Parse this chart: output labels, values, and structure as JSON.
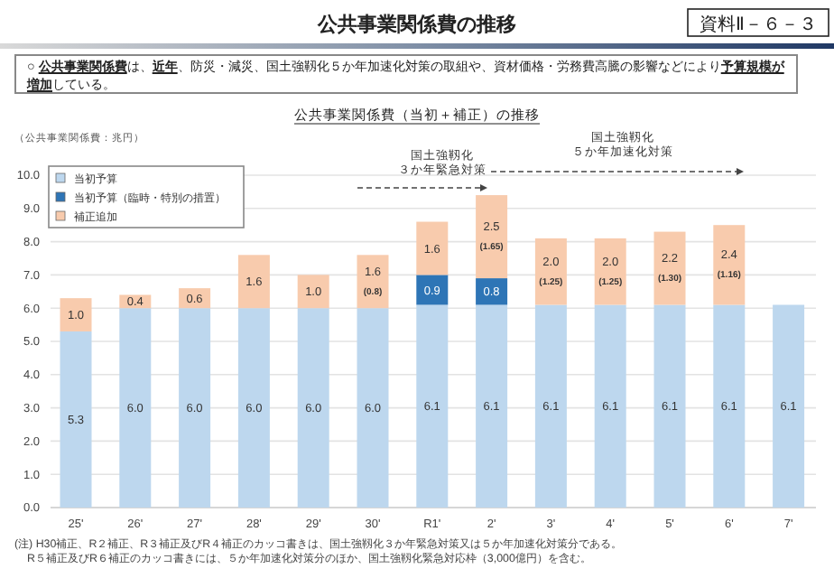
{
  "chart_data": {
    "type": "bar",
    "title": "公共事業関係費の推移",
    "subtitle": "公共事業関係費（当初＋補正）の推移",
    "ylabel": "（公共事業関係費：兆円）",
    "categories": [
      "25'",
      "26'",
      "27'",
      "28'",
      "29'",
      "30'",
      "R1'",
      "2'",
      "3'",
      "4'",
      "5'",
      "6'",
      "7'"
    ],
    "series": [
      {
        "name": "当初予算",
        "color": "#bdd7ee",
        "values": [
          5.3,
          6.0,
          6.0,
          6.0,
          6.0,
          6.0,
          6.1,
          6.1,
          6.1,
          6.1,
          6.1,
          6.1,
          6.1
        ],
        "value_labels": [
          "5.3",
          "6.0",
          "6.0",
          "6.0",
          "6.0",
          "6.0",
          "6.1",
          "6.1",
          "6.1",
          "6.1",
          "6.1",
          "6.1",
          "6.1"
        ]
      },
      {
        "name": "当初予算（臨時・特別の措置）",
        "color": "#2e75b6",
        "values": [
          null,
          null,
          null,
          null,
          null,
          null,
          0.9,
          0.8,
          null,
          null,
          null,
          null,
          null
        ],
        "value_labels": [
          null,
          null,
          null,
          null,
          null,
          null,
          "0.9",
          "0.8",
          null,
          null,
          null,
          null,
          null
        ]
      },
      {
        "name": "補正追加",
        "color": "#f8cbad",
        "values": [
          1.0,
          0.4,
          0.6,
          1.6,
          1.0,
          1.6,
          1.6,
          2.5,
          2.0,
          2.0,
          2.2,
          2.4,
          null
        ],
        "value_labels": [
          "1.0",
          "0.4",
          "0.6",
          "1.6",
          "1.0",
          "1.6\n(0.8)",
          "1.6",
          "2.5\n(1.65)",
          "2.0\n(1.25)",
          "2.0\n(1.25)",
          "2.2\n(1.30)",
          "2.4\n(1.16)",
          null
        ]
      }
    ],
    "stacked": true,
    "legend": "top left",
    "grid": "y",
    "ylim": [
      0,
      10
    ],
    "yticks": [
      {
        "value": 0,
        "label": "0.0"
      },
      {
        "value": 1,
        "label": "1.0"
      },
      {
        "value": 2,
        "label": "2.0"
      },
      {
        "value": 3,
        "label": "3.0"
      },
      {
        "value": 4,
        "label": "4.0"
      },
      {
        "value": 5,
        "label": "5.0"
      },
      {
        "value": 6,
        "label": "6.0"
      },
      {
        "value": 7,
        "label": "7.0"
      },
      {
        "value": 8,
        "label": "8.0"
      },
      {
        "value": 9,
        "label": "9.0"
      },
      {
        "value": 10,
        "label": "10.0"
      }
    ],
    "annotations": [
      "資料Ⅱ－６－３",
      "○ **公共事業関係費**は、**近年**、防災・減災、国土強靱化５か年加速化対策の取組や、資材価格・労務費高騰の影響などにより**予算規模が増加**している。",
      "国土強靱化",
      "３か年緊急対策",
      "国土強靱化",
      "５か年加速化対策",
      "(注) H30補正、R２補正、R３補正及びR４補正のカッコ書きは、国土強靱化３か年緊急対策又は５か年加速化対策分である。\nR５補正及びR６補正のカッコ書きには、５か年加速化対策分のほか、国土強靱化緊急対応枠（3,000億円）を含む。"
    ]
  }
}
